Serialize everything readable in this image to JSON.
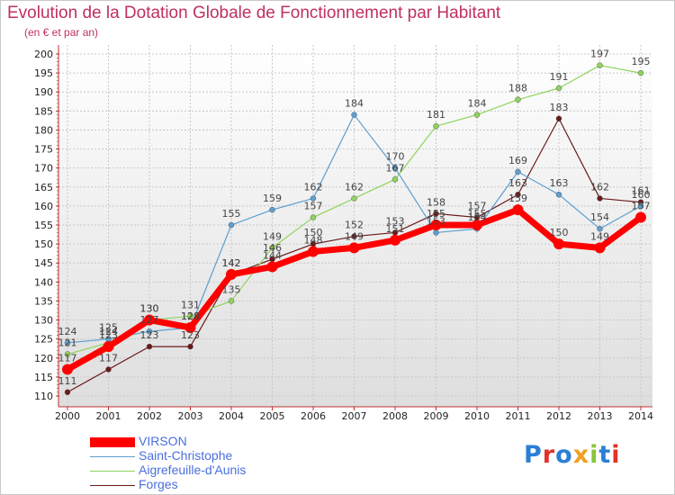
{
  "title": "Evolution de la Dotation Globale de Fonctionnement par Habitant",
  "subtitle": "(en € et par an)",
  "logo_text": "Proxiti",
  "logo_colors": [
    "#2a7fd4",
    "#e0332a",
    "#2a7fd4",
    "#f0a020",
    "#8ac43a",
    "#2a7fd4",
    "#e0332a"
  ],
  "chart_data": {
    "type": "line",
    "title": "Evolution de la Dotation Globale de Fonctionnement par Habitant",
    "subtitle": "(en € et par an)",
    "x": [
      "2000",
      "2001",
      "2002",
      "2003",
      "2004",
      "2005",
      "2006",
      "2007",
      "2008",
      "2009",
      "2010",
      "2011",
      "2012",
      "2013",
      "2014"
    ],
    "yticks": [
      "110",
      "115",
      "120",
      "125",
      "130",
      "135",
      "140",
      "145",
      "150",
      "155",
      "160",
      "165",
      "170",
      "175",
      "180",
      "185",
      "190",
      "195",
      "200"
    ],
    "ylim": [
      110,
      200
    ],
    "legend_position": "bottom-left",
    "grid": true,
    "series": [
      {
        "name": "VIRSON",
        "color": "#ff0000",
        "values": [
          117,
          123,
          130,
          128,
          142,
          144,
          148,
          149,
          151,
          155,
          155,
          159,
          150,
          149,
          157
        ]
      },
      {
        "name": "Saint-Christophe",
        "color": "#5d9fd0",
        "values": [
          124,
          125,
          127,
          128,
          155,
          159,
          162,
          184,
          170,
          153,
          154,
          169,
          163,
          154,
          160
        ]
      },
      {
        "name": "Aigrefeuille-d'Aunis",
        "color": "#8fd45c",
        "values": [
          121,
          124,
          130,
          131,
          135,
          149,
          157,
          162,
          167,
          181,
          184,
          188,
          191,
          197,
          195
        ]
      },
      {
        "name": "Forges",
        "color": "#6b1a1a",
        "values": [
          111,
          117,
          123,
          123,
          142,
          146,
          150,
          152,
          153,
          158,
          157,
          163,
          183,
          162,
          161
        ]
      }
    ]
  }
}
